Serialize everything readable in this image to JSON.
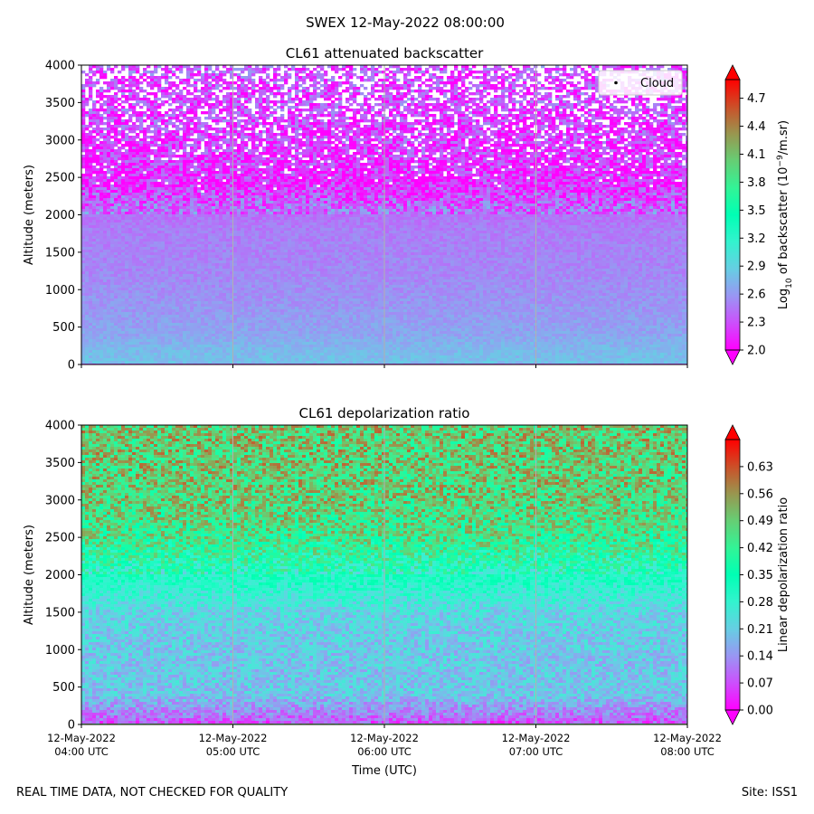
{
  "suptitle": "SWEX 12-May-2022 08:00:00",
  "footer": {
    "left": "REAL TIME DATA, NOT CHECKED FOR QUALITY",
    "right": "Site: ISS1"
  },
  "chart_data": [
    {
      "type": "heatmap",
      "title": "CL61 attenuated backscatter",
      "ylabel": "Altitude (meters)",
      "ylim": [
        0,
        4000
      ],
      "yticks": [
        0,
        500,
        1000,
        1500,
        2000,
        2500,
        3000,
        3500,
        4000
      ],
      "xlim_hours_utc": [
        4,
        8
      ],
      "grid": "vertical",
      "legend": {
        "label": "Cloud",
        "placement": "top-right"
      },
      "colorbar": {
        "label_prefix": "Log",
        "label_sub": "10",
        "label_mid": " of backscatter (10",
        "label_sup": "−9",
        "label_suffix": "/m.sr)",
        "vmin": 2.0,
        "vmax": 4.9,
        "extend": "both",
        "ticks": [
          "2.0",
          "2.3",
          "2.6",
          "2.9",
          "3.2",
          "3.5",
          "3.8",
          "4.1",
          "4.4",
          "4.7"
        ]
      },
      "profile": [
        {
          "altitude": 0,
          "value": 2.8
        },
        {
          "altitude": 200,
          "value": 2.75
        },
        {
          "altitude": 400,
          "value": 2.65
        },
        {
          "altitude": 800,
          "value": 2.58
        },
        {
          "altitude": 1200,
          "value": 2.52
        },
        {
          "altitude": 1800,
          "value": 2.48
        },
        {
          "altitude": 2100,
          "value": 2.4
        },
        {
          "altitude": 2400,
          "value": 2.15
        },
        {
          "altitude": 3000,
          "value": 2.2
        },
        {
          "altitude": 4000,
          "value": 2.3
        }
      ]
    },
    {
      "type": "heatmap",
      "title": "CL61 depolarization ratio",
      "ylabel": "Altitude (meters)",
      "xlabel": "Time (UTC)",
      "ylim": [
        0,
        4000
      ],
      "yticks": [
        0,
        500,
        1000,
        1500,
        2000,
        2500,
        3000,
        3500,
        4000
      ],
      "xlim_hours_utc": [
        4,
        8
      ],
      "grid": "vertical",
      "xticks": [
        {
          "date": "12-May-2022",
          "time": "04:00 UTC"
        },
        {
          "date": "12-May-2022",
          "time": "05:00 UTC"
        },
        {
          "date": "12-May-2022",
          "time": "06:00 UTC"
        },
        {
          "date": "12-May-2022",
          "time": "07:00 UTC"
        },
        {
          "date": "12-May-2022",
          "time": "08:00 UTC"
        }
      ],
      "colorbar": {
        "label": "Linear depolarization ratio",
        "vmin": 0.0,
        "vmax": 0.7,
        "extend": "both",
        "ticks": [
          "0.00",
          "0.07",
          "0.14",
          "0.21",
          "0.28",
          "0.35",
          "0.42",
          "0.49",
          "0.56",
          "0.63"
        ]
      },
      "profile": [
        {
          "altitude": 0,
          "value": 0.06
        },
        {
          "altitude": 150,
          "value": 0.12
        },
        {
          "altitude": 400,
          "value": 0.2
        },
        {
          "altitude": 1000,
          "value": 0.2
        },
        {
          "altitude": 1500,
          "value": 0.22
        },
        {
          "altitude": 2000,
          "value": 0.32
        },
        {
          "altitude": 2500,
          "value": 0.44
        },
        {
          "altitude": 3000,
          "value": 0.48
        },
        {
          "altitude": 4000,
          "value": 0.5
        }
      ]
    }
  ]
}
